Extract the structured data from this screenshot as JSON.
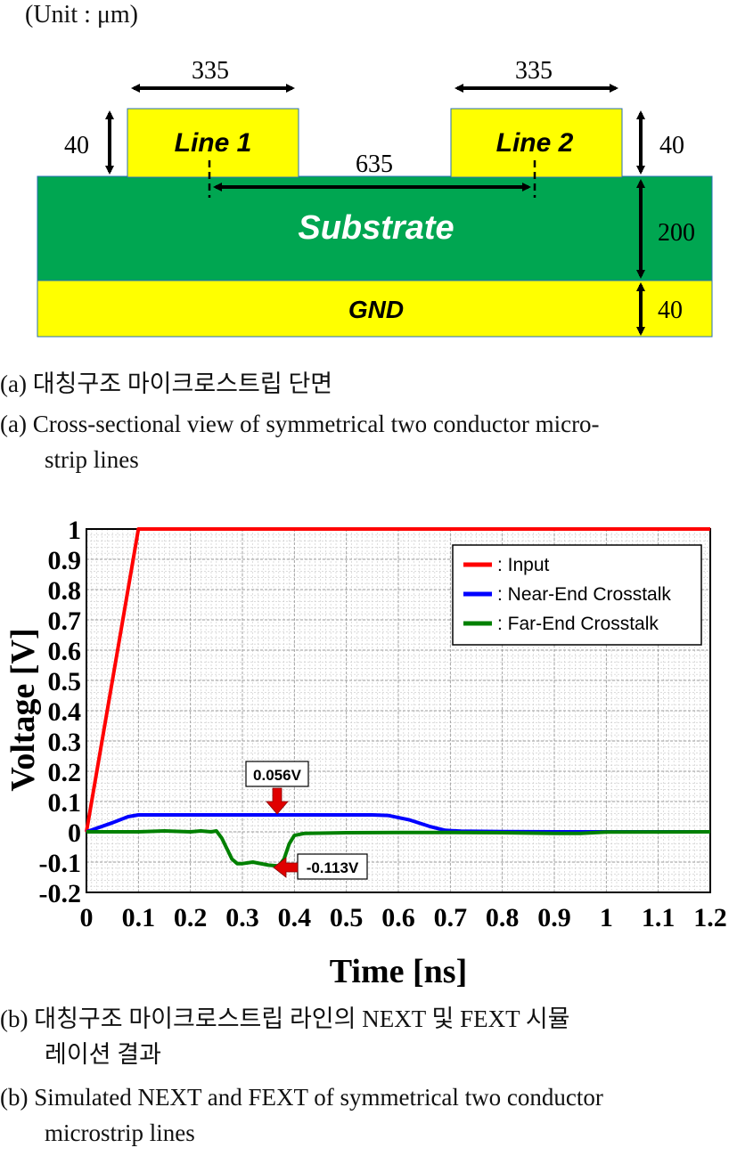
{
  "figure_a": {
    "unit_label": "(Unit : μm)",
    "line1_label": "Line 1",
    "line2_label": "Line 2",
    "substrate_label": "Substrate",
    "gnd_label": "GND",
    "dim_line1_width": "335",
    "dim_line2_width": "335",
    "dim_spacing": "635",
    "dim_line1_height": "40",
    "dim_line2_height": "40",
    "dim_substrate_height": "200",
    "dim_gnd_height": "40",
    "colors": {
      "conductor": "#ffff00",
      "substrate": "#00a651",
      "gnd": "#ffff00"
    }
  },
  "caption_a_korean": "(a) 대칭구조 마이크로스트립 단면",
  "caption_a_english_line1": "(a) Cross-sectional view of symmetrical two conductor micro-",
  "caption_a_english_line2": "strip lines",
  "chart_data": {
    "type": "line",
    "xlabel": "Time [ns]",
    "ylabel": "Voltage [V]",
    "xlim": [
      0,
      1.2
    ],
    "ylim": [
      -0.2,
      1.0
    ],
    "x_ticks": [
      "0",
      "0.1",
      "0.2",
      "0.3",
      "0.4",
      "0.5",
      "0.6",
      "0.7",
      "0.8",
      "0.9",
      "1",
      "1.1",
      "1.2"
    ],
    "y_ticks": [
      "1",
      "0.9",
      "0.8",
      "0.7",
      "0.6",
      "0.5",
      "0.4",
      "0.3",
      "0.2",
      "0.1",
      "0",
      "-0.1",
      "-0.2"
    ],
    "grid": true,
    "legend_position": "top-right",
    "series": [
      {
        "name": ": Input",
        "color": "#ff0000",
        "x": [
          0,
          0.1,
          1.2
        ],
        "y": [
          0,
          1.0,
          1.0
        ]
      },
      {
        "name": ": Near-End Crosstalk",
        "color": "#0000ff",
        "x": [
          0,
          0.05,
          0.08,
          0.1,
          0.2,
          0.3,
          0.4,
          0.5,
          0.55,
          0.58,
          0.62,
          0.66,
          0.69,
          0.72,
          0.8,
          0.9,
          1.0,
          1.2
        ],
        "y": [
          0,
          0.03,
          0.05,
          0.056,
          0.056,
          0.056,
          0.056,
          0.056,
          0.056,
          0.054,
          0.04,
          0.018,
          0.005,
          0.002,
          0.001,
          0,
          0,
          0
        ]
      },
      {
        "name": ": Far-End Crosstalk",
        "color": "#008000",
        "x": [
          0,
          0.1,
          0.15,
          0.2,
          0.22,
          0.24,
          0.25,
          0.26,
          0.27,
          0.28,
          0.29,
          0.3,
          0.32,
          0.35,
          0.37,
          0.38,
          0.39,
          0.4,
          0.42,
          0.5,
          0.6,
          0.7,
          0.8,
          0.9,
          0.95,
          1.0,
          1.2
        ],
        "y": [
          0,
          0,
          0.003,
          0,
          0.003,
          0,
          0.003,
          -0.02,
          -0.055,
          -0.09,
          -0.105,
          -0.105,
          -0.1,
          -0.11,
          -0.113,
          -0.09,
          -0.04,
          -0.012,
          -0.005,
          -0.003,
          -0.002,
          -0.002,
          -0.003,
          -0.005,
          -0.005,
          -0.001,
          0
        ]
      }
    ],
    "annotations": [
      {
        "text": "0.056V",
        "x": 0.37,
        "y": 0.056
      },
      {
        "text": "-0.113V",
        "x": 0.37,
        "y": -0.113
      }
    ]
  },
  "caption_b_korean_line1": "(b) 대칭구조 마이크로스트립 라인의 NEXT 및 FEXT 시뮬",
  "caption_b_korean_line2": "레이션 결과",
  "caption_b_english_line1": "(b) Simulated NEXT and FEXT of symmetrical two conductor",
  "caption_b_english_line2": "microstrip lines"
}
